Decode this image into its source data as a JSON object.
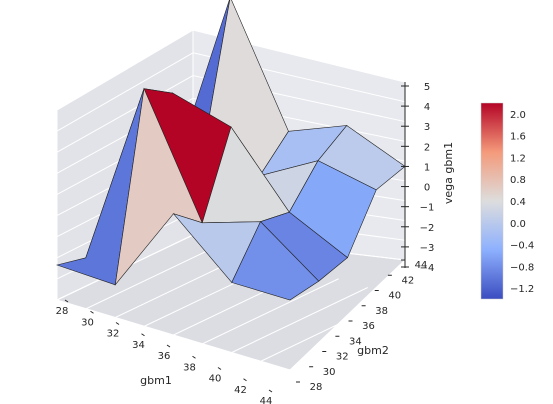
{
  "chart_data": {
    "type": "surface3d",
    "title": "",
    "xlabel": "gbm1",
    "ylabel": "gbm2",
    "zlabel": "vega gbm1",
    "x_ticks": [
      "28",
      "30",
      "32",
      "34",
      "36",
      "38",
      "40",
      "42",
      "44"
    ],
    "y_ticks": [
      "28",
      "30",
      "32",
      "34",
      "36",
      "38",
      "40",
      "42",
      "44"
    ],
    "z_ticks": [
      "5",
      "4",
      "3",
      "2",
      "1",
      "0",
      "−1",
      "−2",
      "−3",
      "−4"
    ],
    "xlim": [
      28,
      44
    ],
    "ylim": [
      28,
      44
    ],
    "zlim": [
      -4,
      5
    ],
    "grid": true,
    "x": [
      28,
      32,
      36,
      40,
      44
    ],
    "y": [
      28,
      32,
      36,
      40,
      44
    ],
    "z_approx": [
      [
        -2.5,
        -2.6,
        1.2,
        -1.0,
        -1.0
      ],
      [
        -3.5,
        4.5,
        -0.5,
        0.3,
        -1.5
      ],
      [
        -3.9,
        3.0,
        2.3,
        -0.6,
        -1.8
      ],
      [
        -3.9,
        -1.2,
        -1.1,
        0.3,
        -0.2
      ],
      [
        -3.9,
        4.5,
        -0.5,
        0.5,
        -0.5
      ]
    ],
    "colormap": "coolwarm",
    "colorbar": {
      "ticks": [
        "2.0",
        "1.6",
        "1.2",
        "0.8",
        "0.4",
        "0.0",
        "−0.4",
        "−0.8",
        "−1.2"
      ],
      "range": [
        -1.4,
        2.2
      ]
    }
  }
}
